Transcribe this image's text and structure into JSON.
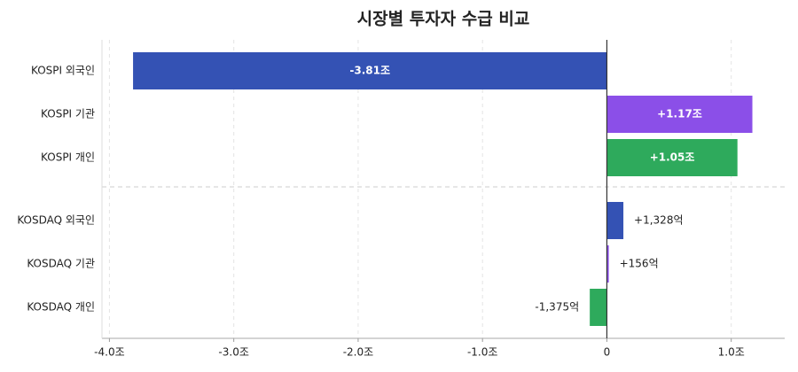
{
  "chart_data": {
    "type": "hbar",
    "title": "시장별 투자자 수급 비교",
    "categories": [
      "KOSPI 외국인",
      "KOSPI 기관",
      "KOSPI 개인",
      "KOSDAQ 외국인",
      "KOSDAQ 기관",
      "KOSDAQ 개인"
    ],
    "values": [
      -3.81,
      1.17,
      1.05,
      0.1328,
      0.0156,
      -0.1375
    ],
    "value_labels": [
      "-3.81조",
      "+1.17조",
      "+1.05조",
      "+1,328억",
      "+156억",
      "-1,375억"
    ],
    "colors": [
      "#3452b4",
      "#8b4fe8",
      "#2eaa5c",
      "#3452b4",
      "#8b4fe8",
      "#2eaa5c"
    ],
    "xlim": [
      -4.06,
      1.43
    ],
    "xticks": [
      {
        "value": -4.0,
        "label": "-4.0조"
      },
      {
        "value": -3.0,
        "label": "-3.0조"
      },
      {
        "value": -2.0,
        "label": "-2.0조"
      },
      {
        "value": -1.0,
        "label": "-1.0조"
      },
      0,
      {
        "value": 1.0,
        "label": "1.0조"
      }
    ],
    "grid": true
  }
}
